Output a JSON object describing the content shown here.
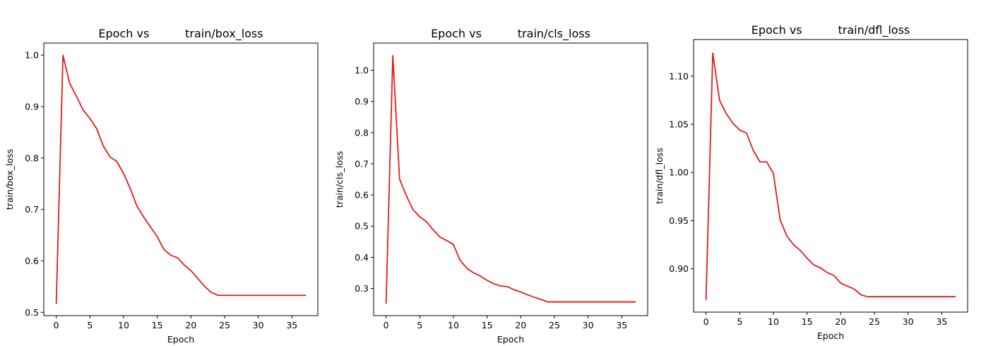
{
  "chart_data": [
    {
      "type": "line",
      "title": "Epoch vs          train/box_loss",
      "xlabel": "Epoch",
      "ylabel": "train/box_loss",
      "xlim": [
        -1.85,
        38.85
      ],
      "ylim": [
        0.4935,
        1.0235
      ],
      "xticks": [
        0,
        5,
        10,
        15,
        20,
        25,
        30,
        35
      ],
      "yticks": [
        0.5,
        0.6,
        0.7,
        0.8,
        0.9,
        1.0
      ],
      "ytick_labels": [
        "0.5",
        "0.6",
        "0.7",
        "0.8",
        "0.9",
        "1.0"
      ],
      "grid": false,
      "color": "#e41a1c",
      "series": [
        {
          "x": [
            0,
            1,
            2,
            3,
            4,
            5,
            6,
            7,
            8,
            9,
            10,
            11,
            12,
            13,
            14,
            15,
            16,
            17,
            18,
            19,
            20,
            21,
            22,
            23,
            24,
            25,
            26,
            27,
            28,
            29,
            30,
            31,
            32,
            33,
            34,
            35,
            36,
            37
          ],
          "y": [
            0.517,
            1.0,
            0.945,
            0.92,
            0.893,
            0.877,
            0.857,
            0.823,
            0.802,
            0.793,
            0.77,
            0.74,
            0.706,
            0.685,
            0.666,
            0.647,
            0.622,
            0.611,
            0.606,
            0.592,
            0.581,
            0.566,
            0.551,
            0.539,
            0.533,
            0.533,
            0.533,
            0.533,
            0.533,
            0.533,
            0.533,
            0.533,
            0.533,
            0.533,
            0.533,
            0.533,
            0.533,
            0.533
          ]
        }
      ]
    },
    {
      "type": "line",
      "title": "Epoch vs          train/cls_loss",
      "xlabel": "Epoch",
      "ylabel": "train/cls_loss",
      "xlim": [
        -1.85,
        38.85
      ],
      "ylim": [
        0.213,
        1.087
      ],
      "xticks": [
        0,
        5,
        10,
        15,
        20,
        25,
        30,
        35
      ],
      "yticks": [
        0.3,
        0.4,
        0.5,
        0.6,
        0.7,
        0.8,
        0.9,
        1.0
      ],
      "ytick_labels": [
        "0.3",
        "0.4",
        "0.5",
        "0.6",
        "0.7",
        "0.8",
        "0.9",
        "1.0"
      ],
      "grid": false,
      "color": "#e41a1c",
      "series": [
        {
          "x": [
            0,
            1,
            2,
            3,
            4,
            5,
            6,
            7,
            8,
            9,
            10,
            11,
            12,
            13,
            14,
            15,
            16,
            17,
            18,
            19,
            20,
            21,
            22,
            23,
            24,
            25,
            26,
            27,
            28,
            29,
            30,
            31,
            32,
            33,
            34,
            35,
            36,
            37
          ],
          "y": [
            0.253,
            1.047,
            0.651,
            0.598,
            0.553,
            0.53,
            0.514,
            0.488,
            0.465,
            0.454,
            0.441,
            0.39,
            0.365,
            0.35,
            0.34,
            0.326,
            0.315,
            0.308,
            0.306,
            0.296,
            0.289,
            0.28,
            0.272,
            0.265,
            0.257,
            0.257,
            0.257,
            0.257,
            0.257,
            0.257,
            0.257,
            0.257,
            0.257,
            0.257,
            0.257,
            0.257,
            0.257,
            0.257
          ]
        }
      ]
    },
    {
      "type": "line",
      "title": "Epoch vs          train/dfl_loss",
      "xlabel": "Epoch",
      "ylabel": "train/dfl_loss",
      "xlim": [
        -1.85,
        38.85
      ],
      "ylim": [
        0.855,
        1.138
      ],
      "xticks": [
        0,
        5,
        10,
        15,
        20,
        25,
        30,
        35
      ],
      "yticks": [
        0.9,
        0.95,
        1.0,
        1.05,
        1.1
      ],
      "ytick_labels": [
        "0.90",
        "0.95",
        "1.00",
        "1.05",
        "1.10"
      ],
      "grid": false,
      "color": "#e41a1c",
      "series": [
        {
          "x": [
            0,
            1,
            2,
            3,
            4,
            5,
            6,
            7,
            8,
            9,
            10,
            11,
            12,
            13,
            14,
            15,
            16,
            17,
            18,
            19,
            20,
            21,
            22,
            23,
            24,
            25,
            26,
            27,
            28,
            29,
            30,
            31,
            32,
            33,
            34,
            35,
            36,
            37
          ],
          "y": [
            0.868,
            1.124,
            1.075,
            1.061,
            1.051,
            1.044,
            1.041,
            1.023,
            1.011,
            1.011,
            0.999,
            0.951,
            0.934,
            0.925,
            0.919,
            0.911,
            0.904,
            0.901,
            0.896,
            0.893,
            0.885,
            0.882,
            0.879,
            0.873,
            0.871,
            0.871,
            0.871,
            0.871,
            0.871,
            0.871,
            0.871,
            0.871,
            0.871,
            0.871,
            0.871,
            0.871,
            0.871,
            0.871
          ]
        }
      ]
    }
  ]
}
